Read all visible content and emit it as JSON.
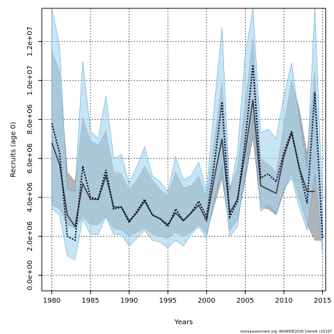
{
  "chart_data": {
    "type": "line",
    "xlabel": "Years",
    "ylabel": "Recruits (age 0)",
    "xlim": [
      1978.7,
      2015.4
    ],
    "ylim": [
      -800000,
      13700000
    ],
    "x_ticks": [
      1980,
      1985,
      1990,
      1995,
      2000,
      2005,
      2010,
      2015
    ],
    "x_tick_labels": [
      "1980",
      "1985",
      "1990",
      "1995",
      "2000",
      "2005",
      "2010",
      "2015"
    ],
    "y_ticks": [
      0,
      2000000,
      4000000,
      6000000,
      8000000,
      10000000,
      12000000
    ],
    "y_tick_labels": [
      "0.0e+00",
      "2.0e+06",
      "4.0e+06",
      "6.0e+06",
      "8.0e+06",
      "1.0e+07",
      "1.2e+07"
    ],
    "grid": true,
    "years": [
      1980,
      1981,
      1982,
      1983,
      1984,
      1985,
      1986,
      1987,
      1988,
      1989,
      1990,
      1991,
      1992,
      1993,
      1994,
      1995,
      1996,
      1997,
      1998,
      1999,
      2000,
      2001,
      2002,
      2003,
      2004,
      2005,
      2006,
      2007,
      2008,
      2009,
      2010,
      2011,
      2012,
      2013,
      2014,
      2015
    ],
    "colors": {
      "blue_band": "#a7d5f0",
      "blue_band_edge": "#5aa9d6",
      "grey_band": "#a6a6a6",
      "grey_band_edge": "#555555",
      "overlap": "#8fb6cc",
      "dotted_line": "#000033",
      "solid_line": "#3a3a3a"
    },
    "series": [
      {
        "style": "grey-band-solid",
        "values": [
          6800000,
          5700000,
          3100000,
          2500000,
          4700000,
          3900000,
          3900000,
          5100000,
          3500000,
          3500000,
          2800000,
          3200000,
          3800000,
          3100000,
          2900000,
          2600000,
          3200000,
          2800000,
          3200000,
          3600000,
          2800000,
          5000000,
          7000000,
          3200000,
          3900000,
          6300000,
          9000000,
          4600000,
          4400000,
          4200000,
          6100000,
          7300000,
          5500000,
          4300000,
          4300000,
          null
        ],
        "lower": [
          3600000,
          3400000,
          2600000,
          2400000,
          3000000,
          2600000,
          2600000,
          3000000,
          2400000,
          2300000,
          2000000,
          2200000,
          2400000,
          2100000,
          2000000,
          1900000,
          2200000,
          2000000,
          2200000,
          2600000,
          2100000,
          3600000,
          5000000,
          2300000,
          2800000,
          4900000,
          7100000,
          3500000,
          3400000,
          3100000,
          4300000,
          5200000,
          3900000,
          2600000,
          1800000,
          1800000
        ],
        "upper": [
          11500000,
          10500000,
          5300000,
          4800000,
          8100000,
          6900000,
          6700000,
          7400000,
          5300000,
          5200000,
          4400000,
          4900000,
          5600000,
          4900000,
          4400000,
          4100000,
          5300000,
          4500000,
          4600000,
          5100000,
          4000000,
          6900000,
          9900000,
          4500000,
          5500000,
          8800000,
          12200000,
          6000000,
          5700000,
          5300000,
          7700000,
          10000000,
          8500000,
          6200000,
          10500000,
          2200000
        ]
      },
      {
        "style": "blue-band-dotted",
        "values": [
          7800000,
          6300000,
          2000000,
          1800000,
          5600000,
          4000000,
          3900000,
          5400000,
          3400000,
          3500000,
          2700000,
          3300000,
          3900000,
          3100000,
          2900000,
          2500000,
          3400000,
          2800000,
          3200000,
          3800000,
          3000000,
          5700000,
          8900000,
          3000000,
          3800000,
          6900000,
          10800000,
          5000000,
          5200000,
          4800000,
          6300000,
          7400000,
          5500000,
          3700000,
          9400000,
          1900000
        ],
        "lower": [
          3400000,
          3100000,
          1000000,
          800000,
          2900000,
          2100000,
          2100000,
          3000000,
          2100000,
          2100000,
          1500000,
          1900000,
          2300000,
          1800000,
          1700000,
          1400000,
          1800000,
          1500000,
          2100000,
          2500000,
          1900000,
          3900000,
          5600000,
          2000000,
          2500000,
          5400000,
          8300000,
          3300000,
          3600000,
          3200000,
          4400000,
          5000000,
          3500000,
          2300000,
          5200000,
          1100000
        ],
        "upper": [
          14000000,
          11800000,
          4400000,
          4300000,
          11000000,
          7400000,
          7000000,
          9200000,
          6000000,
          6200000,
          4700000,
          5600000,
          6600000,
          5100000,
          4800000,
          4300000,
          6100000,
          4900000,
          5100000,
          5800000,
          4300000,
          8700000,
          12700000,
          4300000,
          6300000,
          11300000,
          14500000,
          7300000,
          7500000,
          7000000,
          9200000,
          10900000,
          8000000,
          5500000,
          14500000,
          3700000
        ]
      }
    ],
    "footer": "stockassessment.org, WGWIDE2018.1retro4, r10197"
  }
}
